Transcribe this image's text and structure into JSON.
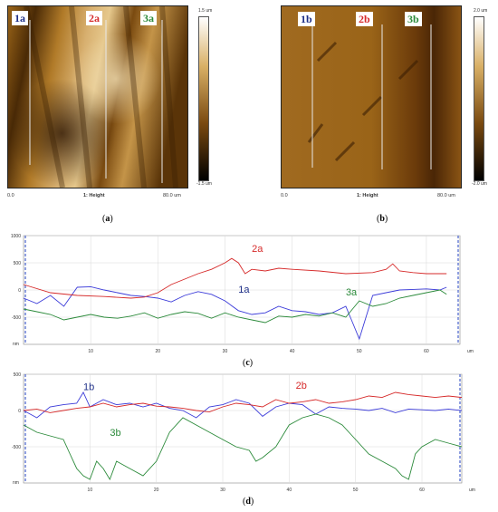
{
  "panelA": {
    "labels": [
      "1a",
      "2a",
      "3a"
    ],
    "label_colors": [
      "#1e2f87",
      "#d62a2a",
      "#2b8a3a"
    ],
    "colorbar_top": "1.5 um",
    "colorbar_bottom": "-1.5 um",
    "x_start": "0.0",
    "channel": "1: Height",
    "x_end": "80.0 um",
    "caption": "a"
  },
  "panelB": {
    "labels": [
      "1b",
      "2b",
      "3b"
    ],
    "label_colors": [
      "#1e2f87",
      "#d62a2a",
      "#2b8a3a"
    ],
    "colorbar_top": "2.0 um",
    "colorbar_bottom": "-2.0 um",
    "x_start": "0.0",
    "channel": "1: Height",
    "x_end": "80.0 um",
    "caption": "b"
  },
  "panelC": {
    "caption": "c"
  },
  "panelD": {
    "caption": "d"
  },
  "chart_data": [
    {
      "type": "line",
      "x_unit": "um",
      "y_unit": "nm",
      "xlim": [
        0,
        65
      ],
      "ylim": [
        -1000,
        1000
      ],
      "xticks": [
        10,
        20,
        30,
        40,
        50,
        60
      ],
      "yticks": [
        1000,
        500,
        0,
        -500
      ],
      "grid": true,
      "series": [
        {
          "name": "1a",
          "color": "#3b3bd9",
          "x": [
            0,
            2,
            4,
            6,
            8,
            10,
            12,
            14,
            16,
            18,
            20,
            22,
            24,
            26,
            28,
            30,
            32,
            34,
            36,
            38,
            40,
            42,
            44,
            46,
            48,
            49,
            50,
            51,
            52,
            54,
            56,
            58,
            60,
            62,
            63
          ],
          "y": [
            -150,
            -250,
            -100,
            -300,
            50,
            60,
            0,
            -50,
            -100,
            -120,
            -150,
            -220,
            -100,
            -30,
            -80,
            -200,
            -380,
            -450,
            -420,
            -300,
            -380,
            -400,
            -450,
            -420,
            -300,
            -600,
            -900,
            -500,
            -100,
            -50,
            0,
            10,
            20,
            0,
            50
          ]
        },
        {
          "name": "2a",
          "color": "#d62a2a",
          "x": [
            0,
            4,
            8,
            12,
            16,
            18,
            20,
            22,
            24,
            26,
            28,
            30,
            31,
            32,
            33,
            34,
            36,
            38,
            40,
            44,
            48,
            52,
            54,
            55,
            56,
            58,
            60,
            63
          ],
          "y": [
            100,
            -50,
            -100,
            -120,
            -150,
            -130,
            -50,
            100,
            200,
            300,
            380,
            500,
            580,
            500,
            300,
            380,
            350,
            400,
            380,
            350,
            300,
            320,
            380,
            480,
            350,
            320,
            300,
            300
          ]
        },
        {
          "name": "3a",
          "color": "#2b8a3a",
          "x": [
            0,
            2,
            4,
            6,
            8,
            10,
            12,
            14,
            16,
            18,
            20,
            22,
            24,
            26,
            28,
            30,
            32,
            34,
            36,
            38,
            40,
            42,
            44,
            46,
            48,
            50,
            52,
            54,
            56,
            58,
            60,
            62,
            63
          ],
          "y": [
            -350,
            -400,
            -450,
            -550,
            -500,
            -450,
            -500,
            -520,
            -480,
            -420,
            -520,
            -450,
            -400,
            -430,
            -520,
            -420,
            -500,
            -550,
            -600,
            -480,
            -500,
            -450,
            -480,
            -420,
            -500,
            -200,
            -300,
            -250,
            -150,
            -100,
            -50,
            0,
            -80
          ]
        }
      ]
    },
    {
      "type": "line",
      "x_unit": "um",
      "y_unit": "nm",
      "xlim": [
        0,
        66
      ],
      "ylim": [
        -1000,
        500
      ],
      "xticks": [
        10,
        20,
        30,
        40,
        50,
        60
      ],
      "yticks": [
        500,
        0,
        -500
      ],
      "grid": true,
      "series": [
        {
          "name": "1b",
          "color": "#3b3bd9",
          "x": [
            0,
            2,
            4,
            6,
            8,
            9,
            10,
            12,
            14,
            16,
            18,
            20,
            22,
            24,
            26,
            28,
            30,
            32,
            34,
            36,
            38,
            40,
            42,
            44,
            46,
            48,
            50,
            52,
            54,
            56,
            58,
            60,
            62,
            64,
            66
          ],
          "y": [
            0,
            -100,
            50,
            80,
            100,
            250,
            50,
            150,
            80,
            100,
            50,
            100,
            30,
            0,
            -100,
            50,
            80,
            150,
            100,
            -80,
            50,
            100,
            80,
            -50,
            50,
            30,
            20,
            0,
            30,
            -30,
            20,
            10,
            0,
            20,
            0
          ]
        },
        {
          "name": "2b",
          "color": "#d62a2a",
          "x": [
            0,
            2,
            4,
            6,
            8,
            10,
            12,
            14,
            16,
            18,
            20,
            22,
            24,
            26,
            28,
            30,
            32,
            34,
            36,
            38,
            40,
            42,
            44,
            46,
            48,
            50,
            52,
            54,
            56,
            58,
            60,
            62,
            64,
            66
          ],
          "y": [
            0,
            20,
            -30,
            0,
            30,
            50,
            100,
            50,
            80,
            100,
            60,
            50,
            30,
            0,
            -20,
            50,
            100,
            80,
            50,
            150,
            100,
            120,
            150,
            100,
            120,
            150,
            200,
            180,
            250,
            220,
            200,
            180,
            200,
            180
          ]
        },
        {
          "name": "3b",
          "color": "#2b8a3a",
          "x": [
            0,
            2,
            4,
            6,
            7,
            8,
            9,
            10,
            11,
            12,
            13,
            14,
            16,
            18,
            20,
            22,
            24,
            26,
            28,
            30,
            32,
            34,
            35,
            36,
            38,
            40,
            42,
            44,
            46,
            48,
            50,
            52,
            54,
            56,
            57,
            58,
            59,
            60,
            62,
            64,
            66
          ],
          "y": [
            -200,
            -300,
            -350,
            -400,
            -600,
            -800,
            -900,
            -950,
            -700,
            -800,
            -950,
            -700,
            -800,
            -900,
            -700,
            -300,
            -100,
            -200,
            -300,
            -400,
            -500,
            -550,
            -700,
            -650,
            -500,
            -200,
            -100,
            -50,
            -100,
            -200,
            -400,
            -600,
            -700,
            -800,
            -900,
            -950,
            -600,
            -500,
            -400,
            -450,
            -500
          ]
        }
      ]
    }
  ]
}
